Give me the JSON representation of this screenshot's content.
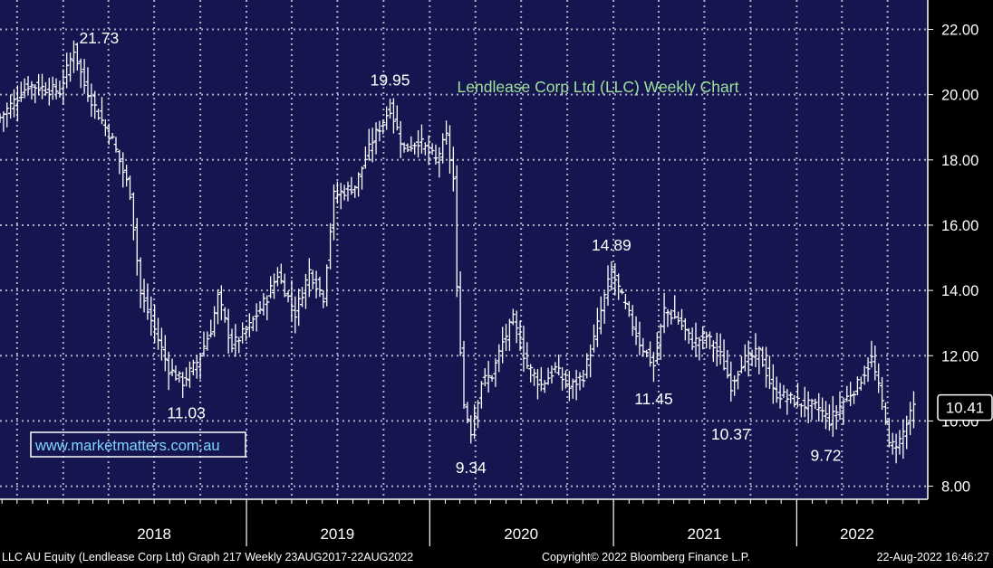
{
  "colors": {
    "plot_background": "#15164f",
    "grid": "#c8c8d8",
    "price_bars": "#ffffff",
    "title": "#9fe29a",
    "watermark": "#7fd4ff",
    "text": "#ffffff"
  },
  "footer": {
    "left": "LLC AU Equity (Lendlease Corp Ltd) Graph 217  Weekly 23AUG2017-22AUG2022",
    "center": "Copyright© 2022 Bloomberg Finance L.P.",
    "right": "22-Aug-2022 16:46:27"
  },
  "chart_data": {
    "type": "ohlc",
    "title": "Lendlease Corp Ltd (LLC) Weekly Chart",
    "watermark": "www.marketmatters.com.au",
    "frequency": "Weekly",
    "y_axis": {
      "position": "right",
      "ylim": [
        7.6,
        22.9
      ],
      "ticks": [
        8,
        10,
        12,
        14,
        16,
        18,
        20,
        22
      ],
      "tick_labels": [
        "8.00",
        "10.00",
        "12.00",
        "14.00",
        "16.00",
        "18.00",
        "20.00",
        "22.00"
      ]
    },
    "x_axis": {
      "xlim": [
        "2017-08-28",
        "2022-09-19"
      ],
      "year_labels": [
        {
          "label": "2018",
          "date": "2018-07-01"
        },
        {
          "label": "2019",
          "date": "2019-07-01"
        },
        {
          "label": "2020",
          "date": "2020-07-01"
        },
        {
          "label": "2021",
          "date": "2021-07-01"
        },
        {
          "label": "2022",
          "date": "2022-05-01"
        }
      ],
      "separators": [
        "2019-01-01",
        "2020-01-01",
        "2021-01-01",
        "2022-01-01"
      ]
    },
    "grid": true,
    "last_price": {
      "value": 10.41,
      "label": "10.41"
    },
    "anchors": [
      [
        "2017-08-28",
        19.3
      ],
      [
        "2017-10-23",
        20.3
      ],
      [
        "2017-12-25",
        20.1
      ],
      [
        "2018-01-22",
        21.4
      ],
      [
        "2018-02-12",
        20.3
      ],
      [
        "2018-03-12",
        19.4
      ],
      [
        "2018-04-09",
        18.6
      ],
      [
        "2018-05-14",
        17.0
      ],
      [
        "2018-06-04",
        13.9
      ],
      [
        "2018-07-02",
        12.8
      ],
      [
        "2018-07-30",
        11.6
      ],
      [
        "2018-08-27",
        11.2
      ],
      [
        "2018-09-24",
        11.8
      ],
      [
        "2018-10-22",
        12.8
      ],
      [
        "2018-11-05",
        13.8
      ],
      [
        "2018-12-03",
        12.3
      ],
      [
        "2019-01-07",
        12.9
      ],
      [
        "2019-02-11",
        13.8
      ],
      [
        "2019-03-04",
        14.5
      ],
      [
        "2019-04-08",
        13.3
      ],
      [
        "2019-05-06",
        14.6
      ],
      [
        "2019-06-03",
        13.8
      ],
      [
        "2019-06-24",
        16.9
      ],
      [
        "2019-08-05",
        17.2
      ],
      [
        "2019-09-09",
        18.6
      ],
      [
        "2019-10-14",
        19.6
      ],
      [
        "2019-11-11",
        18.3
      ],
      [
        "2019-12-09",
        18.6
      ],
      [
        "2020-01-13",
        18.0
      ],
      [
        "2020-02-03",
        18.7
      ],
      [
        "2020-02-17",
        17.4
      ],
      [
        "2020-02-24",
        14.0
      ],
      [
        "2020-03-09",
        10.5
      ],
      [
        "2020-03-23",
        9.7
      ],
      [
        "2020-04-13",
        11.2
      ],
      [
        "2020-05-04",
        11.4
      ],
      [
        "2020-05-25",
        12.4
      ],
      [
        "2020-06-15",
        13.1
      ],
      [
        "2020-07-13",
        11.7
      ],
      [
        "2020-08-10",
        11.1
      ],
      [
        "2020-09-07",
        11.6
      ],
      [
        "2020-10-05",
        11.0
      ],
      [
        "2020-11-02",
        11.4
      ],
      [
        "2020-11-23",
        12.5
      ],
      [
        "2020-12-14",
        13.8
      ],
      [
        "2020-12-28",
        14.6
      ],
      [
        "2021-01-25",
        13.5
      ],
      [
        "2021-02-22",
        12.4
      ],
      [
        "2021-03-22",
        11.7
      ],
      [
        "2021-04-12",
        13.4
      ],
      [
        "2021-05-10",
        13.1
      ],
      [
        "2021-06-07",
        12.4
      ],
      [
        "2021-07-05",
        12.6
      ],
      [
        "2021-08-02",
        12.0
      ],
      [
        "2021-08-23",
        11.1
      ],
      [
        "2021-09-13",
        11.8
      ],
      [
        "2021-10-18",
        12.1
      ],
      [
        "2021-11-15",
        10.9
      ],
      [
        "2021-12-13",
        10.7
      ],
      [
        "2022-01-17",
        10.5
      ],
      [
        "2022-02-14",
        10.4
      ],
      [
        "2022-03-07",
        10.0
      ],
      [
        "2022-04-04",
        10.6
      ],
      [
        "2022-05-02",
        11.1
      ],
      [
        "2022-05-30",
        11.9
      ],
      [
        "2022-06-13",
        11.0
      ],
      [
        "2022-06-27",
        10.1
      ],
      [
        "2022-07-04",
        9.2
      ],
      [
        "2022-07-25",
        9.4
      ],
      [
        "2022-08-22",
        10.41
      ]
    ],
    "annotations": [
      {
        "label": "21.73",
        "date": "2018-01-22",
        "price": 21.73,
        "position": "right"
      },
      {
        "label": "11.03",
        "date": "2018-09-03",
        "price": 11.03,
        "position": "below"
      },
      {
        "label": "19.95",
        "date": "2019-10-14",
        "price": 19.95,
        "position": "above"
      },
      {
        "label": "9.34",
        "date": "2020-03-23",
        "price": 9.34,
        "position": "below"
      },
      {
        "label": "14.89",
        "date": "2020-12-28",
        "price": 14.89,
        "position": "above"
      },
      {
        "label": "11.45",
        "date": "2021-03-22",
        "price": 11.45,
        "position": "below"
      },
      {
        "label": "10.37",
        "date": "2021-08-23",
        "price": 10.37,
        "position": "below"
      },
      {
        "label": "9.72",
        "date": "2022-02-28",
        "price": 9.72,
        "position": "below"
      }
    ]
  }
}
